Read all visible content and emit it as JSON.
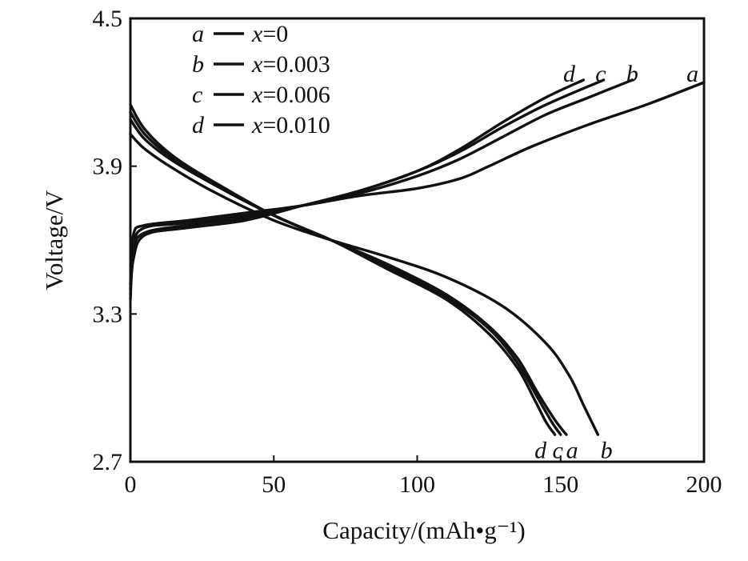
{
  "chart_data": {
    "type": "line",
    "xlabel": "Capacity/(mAh•g⁻¹)",
    "ylabel": "Voltage/V",
    "xlim": [
      0,
      200
    ],
    "ylim": [
      2.7,
      4.5
    ],
    "xticks": [
      0,
      50,
      100,
      150,
      200
    ],
    "xtick_labels": [
      "0",
      "50",
      "100",
      "150",
      "200"
    ],
    "yticks": [
      2.7,
      3.3,
      3.9,
      4.5
    ],
    "ytick_labels": [
      "2.7",
      "3.3",
      "3.9",
      "4.5"
    ],
    "grid": false,
    "legend_position": "top-left",
    "legend": [
      {
        "key": "a",
        "label": "x=0"
      },
      {
        "key": "b",
        "label": "x=0.003"
      },
      {
        "key": "c",
        "label": "x=0.006"
      },
      {
        "key": "d",
        "label": "x=0.010"
      }
    ],
    "series": [
      {
        "name": "a",
        "kind": "charge",
        "x": [
          0,
          1,
          5,
          20,
          40,
          60,
          80,
          100,
          115,
          125,
          140,
          160,
          180,
          200
        ],
        "y": [
          3.42,
          3.62,
          3.66,
          3.68,
          3.71,
          3.74,
          3.78,
          3.81,
          3.85,
          3.9,
          3.98,
          4.07,
          4.15,
          4.24
        ]
      },
      {
        "name": "b",
        "kind": "charge",
        "x": [
          0,
          1,
          5,
          20,
          40,
          60,
          80,
          100,
          115,
          130,
          145,
          160,
          175
        ],
        "y": [
          3.4,
          3.58,
          3.65,
          3.67,
          3.7,
          3.74,
          3.79,
          3.86,
          3.93,
          4.02,
          4.11,
          4.18,
          4.25
        ]
      },
      {
        "name": "c",
        "kind": "charge",
        "x": [
          0,
          1,
          5,
          20,
          40,
          60,
          80,
          100,
          115,
          130,
          145,
          165
        ],
        "y": [
          3.38,
          3.56,
          3.63,
          3.66,
          3.69,
          3.74,
          3.8,
          3.88,
          3.96,
          4.06,
          4.15,
          4.25
        ]
      },
      {
        "name": "d",
        "kind": "charge",
        "x": [
          0,
          1,
          5,
          20,
          40,
          60,
          80,
          100,
          115,
          130,
          145,
          158
        ],
        "y": [
          3.36,
          3.52,
          3.62,
          3.65,
          3.68,
          3.74,
          3.8,
          3.88,
          3.97,
          4.08,
          4.18,
          4.25
        ]
      },
      {
        "name": "a",
        "kind": "discharge",
        "x": [
          0,
          5,
          15,
          30,
          50,
          70,
          90,
          110,
          125,
          135,
          142,
          148,
          152
        ],
        "y": [
          4.09,
          4.01,
          3.92,
          3.82,
          3.7,
          3.6,
          3.5,
          3.38,
          3.25,
          3.12,
          2.98,
          2.87,
          2.81
        ]
      },
      {
        "name": "b",
        "kind": "discharge",
        "x": [
          0,
          5,
          15,
          30,
          50,
          70,
          90,
          110,
          130,
          145,
          153,
          158,
          163
        ],
        "y": [
          4.03,
          3.97,
          3.89,
          3.79,
          3.68,
          3.6,
          3.53,
          3.45,
          3.33,
          3.18,
          3.05,
          2.93,
          2.81
        ]
      },
      {
        "name": "c",
        "kind": "discharge",
        "x": [
          0,
          5,
          15,
          30,
          50,
          70,
          90,
          110,
          125,
          135,
          142,
          147,
          150
        ],
        "y": [
          4.12,
          4.03,
          3.93,
          3.82,
          3.7,
          3.6,
          3.49,
          3.37,
          3.24,
          3.1,
          2.96,
          2.86,
          2.81
        ]
      },
      {
        "name": "d",
        "kind": "discharge",
        "x": [
          0,
          5,
          15,
          30,
          50,
          70,
          90,
          110,
          125,
          135,
          141,
          145,
          148
        ],
        "y": [
          4.15,
          4.05,
          3.94,
          3.83,
          3.7,
          3.6,
          3.48,
          3.36,
          3.22,
          3.08,
          2.95,
          2.86,
          2.81
        ]
      }
    ],
    "curve_labels": [
      {
        "text": "d",
        "x": 153,
        "y": 4.27
      },
      {
        "text": "c",
        "x": 164,
        "y": 4.27
      },
      {
        "text": "b",
        "x": 175,
        "y": 4.27
      },
      {
        "text": "a",
        "x": 196,
        "y": 4.27
      },
      {
        "text": "d",
        "x": 143,
        "y": 2.74
      },
      {
        "text": "c",
        "x": 149,
        "y": 2.74
      },
      {
        "text": "a",
        "x": 154,
        "y": 2.74
      },
      {
        "text": "b",
        "x": 166,
        "y": 2.74
      }
    ]
  }
}
